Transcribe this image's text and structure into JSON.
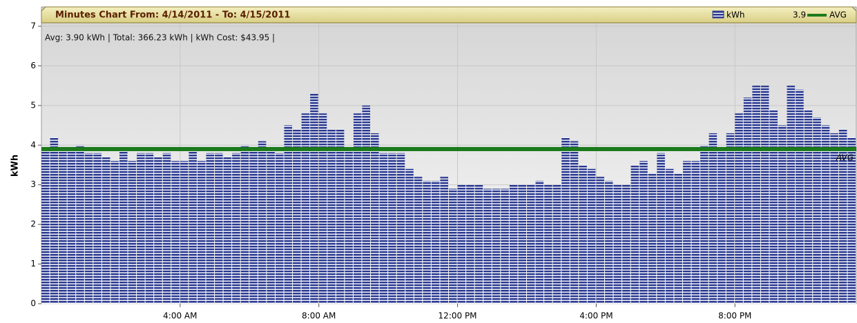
{
  "chart_data": {
    "type": "bar",
    "title": "Minutes Chart From: 4/14/2011 - To: 4/15/2011",
    "subtitle": "Avg: 3.90 kWh | Total: 366.23 kWh | kWh Cost: $43.95 |",
    "y_label": "kWh",
    "x": [
      0,
      0.25,
      0.5,
      0.75,
      1,
      1.25,
      1.5,
      1.75,
      2,
      2.25,
      2.5,
      2.75,
      3,
      3.25,
      3.5,
      3.75,
      4,
      4.25,
      4.5,
      4.75,
      5,
      5.25,
      5.5,
      5.75,
      6,
      6.25,
      6.5,
      6.75,
      7,
      7.25,
      7.5,
      7.75,
      8,
      8.25,
      8.5,
      8.75,
      9,
      9.25,
      9.5,
      9.75,
      10,
      10.25,
      10.5,
      10.75,
      11,
      11.25,
      11.5,
      11.75,
      12,
      12.25,
      12.5,
      12.75,
      13,
      13.25,
      13.5,
      13.75,
      14,
      14.25,
      14.5,
      14.75,
      15,
      15.25,
      15.5,
      15.75,
      16,
      16.25,
      16.5,
      16.75,
      17,
      17.25,
      17.5,
      17.75,
      18,
      18.25,
      18.5,
      18.75,
      19,
      19.25,
      19.5,
      19.75,
      20,
      20.25,
      20.5,
      20.75,
      21,
      21.25,
      21.5,
      21.75,
      22,
      22.25,
      22.5,
      22.75,
      23,
      23.25
    ],
    "bar_width": 0.25,
    "series": [
      {
        "name": "kWh",
        "color": "#2a3990",
        "values": [
          3.9,
          4.2,
          3.9,
          3.9,
          4.0,
          3.8,
          3.8,
          3.7,
          3.6,
          3.9,
          3.6,
          3.8,
          3.8,
          3.7,
          3.8,
          3.6,
          3.6,
          3.9,
          3.6,
          3.8,
          3.8,
          3.7,
          3.8,
          4.0,
          3.9,
          4.1,
          3.9,
          3.8,
          4.5,
          4.4,
          4.8,
          5.3,
          4.8,
          4.4,
          4.4,
          3.9,
          4.8,
          5.0,
          4.3,
          3.8,
          3.8,
          3.8,
          3.4,
          3.2,
          3.1,
          3.1,
          3.2,
          2.9,
          3.0,
          3.0,
          3.0,
          2.9,
          2.9,
          2.9,
          3.0,
          3.0,
          3.0,
          3.1,
          3.0,
          3.0,
          4.2,
          4.1,
          3.5,
          3.4,
          3.2,
          3.1,
          3.0,
          3.0,
          3.5,
          3.6,
          3.3,
          3.8,
          3.4,
          3.3,
          3.6,
          3.6,
          4.0,
          4.3,
          3.9,
          4.3,
          4.8,
          5.2,
          5.5,
          5.5,
          4.9,
          4.5,
          5.5,
          5.4,
          4.9,
          4.7,
          4.5,
          4.3,
          4.4,
          4.2
        ]
      }
    ],
    "avg": {
      "value": 3.9,
      "label": "AVG",
      "color": "#1c7a1c"
    },
    "xlim": [
      0,
      23.5
    ],
    "xticks": [
      {
        "value": 4,
        "label": "4:00 AM"
      },
      {
        "value": 8,
        "label": "8:00 AM"
      },
      {
        "value": 12,
        "label": "12:00 PM"
      },
      {
        "value": 16,
        "label": "4:00 PM"
      },
      {
        "value": 20,
        "label": "8:00 PM"
      }
    ],
    "ylim": [
      0,
      7
    ],
    "yticks": [
      0,
      1,
      2,
      3,
      4,
      5,
      6,
      7
    ],
    "grid": true
  }
}
